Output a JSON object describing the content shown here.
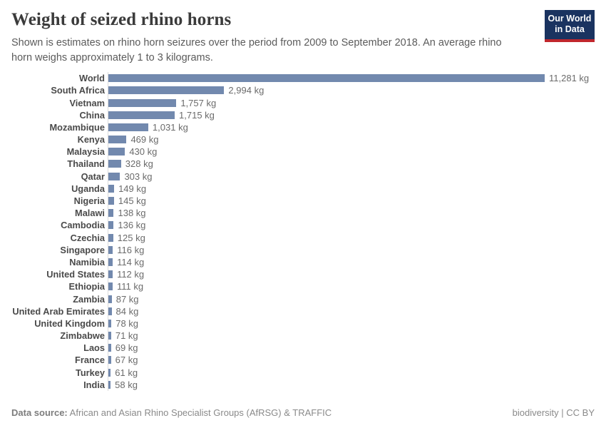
{
  "header": {
    "title": "Weight of seized rhino horns",
    "subtitle": "Shown is estimates on rhino horn seizures over the period from 2009 to September 2018. An average rhino horn weighs approximately 1 to 3 kilograms.",
    "logo": {
      "line1": "Our World",
      "line2": "in Data",
      "bg_color": "#1a3360",
      "accent_color": "#c0272d"
    }
  },
  "chart_data": {
    "type": "bar",
    "orientation": "horizontal",
    "title": "Weight of seized rhino horns",
    "unit": "kg",
    "xlim": [
      0,
      11281
    ],
    "grid": false,
    "legend": false,
    "bar_color": "#7289ae",
    "axis_line_color": "#dcdcdc",
    "categories": [
      "World",
      "South Africa",
      "Vietnam",
      "China",
      "Mozambique",
      "Kenya",
      "Malaysia",
      "Thailand",
      "Qatar",
      "Uganda",
      "Nigeria",
      "Malawi",
      "Cambodia",
      "Czechia",
      "Singapore",
      "Namibia",
      "United States",
      "Ethiopia",
      "Zambia",
      "United Arab Emirates",
      "United Kingdom",
      "Zimbabwe",
      "Laos",
      "France",
      "Turkey",
      "India"
    ],
    "values": [
      11281,
      2994,
      1757,
      1715,
      1031,
      469,
      430,
      328,
      303,
      149,
      145,
      138,
      136,
      125,
      116,
      114,
      112,
      111,
      87,
      84,
      78,
      71,
      69,
      67,
      61,
      58
    ],
    "value_labels": [
      "11,281 kg",
      "2,994 kg",
      "1,757 kg",
      "1,715 kg",
      "1,031 kg",
      "469 kg",
      "430 kg",
      "328 kg",
      "303 kg",
      "149 kg",
      "145 kg",
      "138 kg",
      "136 kg",
      "125 kg",
      "116 kg",
      "114 kg",
      "112 kg",
      "111 kg",
      "87 kg",
      "84 kg",
      "78 kg",
      "71 kg",
      "69 kg",
      "67 kg",
      "61 kg",
      "58 kg"
    ]
  },
  "footer": {
    "datasource_label": "Data source:",
    "datasource_text": "African and Asian Rhino Specialist Groups (AfRSG) & TRAFFIC",
    "license_text": "biodiversity | CC BY"
  }
}
